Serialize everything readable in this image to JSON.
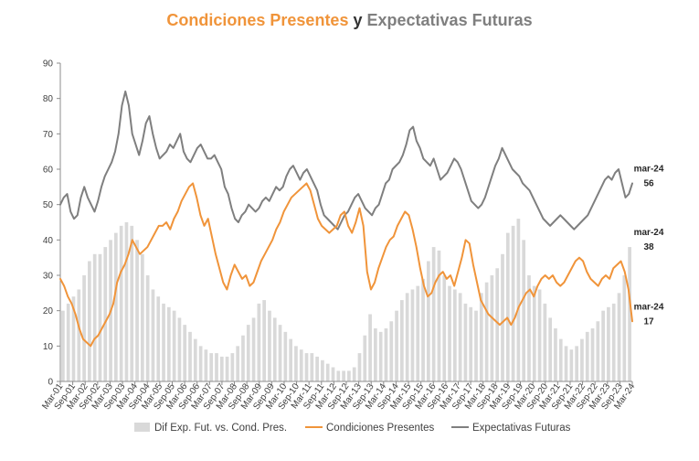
{
  "title": {
    "part1": "Condiciones Presentes",
    "part2": "y",
    "part3": "Expectativas Futuras"
  },
  "colors": {
    "bars": "#D9D9D9",
    "presentes": "#F0943A",
    "futuras": "#7F7F7F"
  },
  "chart_data": {
    "type": "line",
    "x_tick_labels": [
      "Mar-01",
      "Sep-01",
      "Mar-02",
      "Sep-02",
      "Mar-03",
      "Sep-03",
      "Mar-04",
      "Sep-04",
      "Mar-05",
      "Sep-05",
      "Mar-06",
      "Sep-06",
      "Mar-07",
      "Sep-07",
      "Mar-08",
      "Sep-08",
      "Mar-09",
      "Sep-09",
      "Mar-10",
      "Sep-10",
      "Mar-11",
      "Sep-11",
      "Mar-12",
      "Sep-12",
      "Mar-13",
      "Sep-13",
      "Mar-14",
      "Sep-14",
      "Mar-15",
      "Sep-15",
      "Mar-16",
      "Sep-16",
      "Mar-17",
      "Sep-17",
      "Mar-18",
      "Sep-18",
      "Mar-19",
      "Sep-19",
      "Mar-20",
      "Sep-20",
      "Mar-21",
      "Sep-21",
      "Mar-22",
      "Sep-22",
      "Mar-23",
      "Sep-23",
      "Mar-24"
    ],
    "ylim": [
      0,
      90
    ],
    "yticks": [
      0,
      10,
      20,
      30,
      40,
      50,
      60,
      70,
      80,
      90
    ],
    "grid": false,
    "legend_position": "bottom",
    "series": [
      {
        "name": "Dif Exp. Fut. vs. Cond. Pres.",
        "kind": "bar",
        "values": [
          20,
          22,
          24,
          26,
          30,
          34,
          36,
          36,
          38,
          40,
          42,
          44,
          45,
          44,
          40,
          36,
          30,
          26,
          24,
          22,
          21,
          20,
          18,
          16,
          14,
          12,
          10,
          9,
          8,
          8,
          7,
          7,
          8,
          10,
          13,
          16,
          18,
          22,
          23,
          20,
          18,
          16,
          14,
          12,
          10,
          9,
          8,
          8,
          7,
          6,
          5,
          4,
          3,
          3,
          3,
          4,
          8,
          13,
          19,
          15,
          14,
          15,
          17,
          20,
          23,
          25,
          26,
          27,
          29,
          34,
          38,
          37,
          30,
          27,
          26,
          25,
          22,
          21,
          20,
          25,
          28,
          30,
          32,
          36,
          42,
          44,
          46,
          40,
          30,
          27,
          26,
          22,
          18,
          15,
          12,
          10,
          9,
          10,
          12,
          14,
          15,
          17,
          20,
          21,
          22,
          25,
          30,
          38
        ]
      },
      {
        "name": "Condiciones Presentes",
        "kind": "line",
        "values": [
          29,
          27,
          24,
          22,
          19,
          15,
          12,
          11,
          10,
          12,
          13,
          15,
          17,
          19,
          22,
          28,
          31,
          33,
          36,
          40,
          38,
          36,
          37,
          38,
          40,
          42,
          44,
          44,
          45,
          43,
          46,
          48,
          51,
          53,
          55,
          56,
          52,
          47,
          44,
          46,
          41,
          36,
          32,
          28,
          26,
          30,
          33,
          31,
          29,
          30,
          27,
          28,
          31,
          34,
          36,
          38,
          40,
          43,
          45,
          48,
          50,
          52,
          53,
          54,
          55,
          56,
          54,
          50,
          46,
          44,
          43,
          42,
          43,
          44,
          47,
          48,
          44,
          42,
          45,
          49,
          44,
          31,
          26,
          28,
          32,
          35,
          38,
          40,
          41,
          44,
          46,
          48,
          47,
          43,
          38,
          32,
          27,
          24,
          25,
          28,
          30,
          31,
          29,
          30,
          27,
          31,
          35,
          40,
          39,
          33,
          28,
          23,
          21,
          19,
          18,
          17,
          16,
          17,
          18,
          16,
          18,
          21,
          23,
          25,
          26,
          24,
          27,
          29,
          30,
          29,
          30,
          28,
          27,
          28,
          30,
          32,
          34,
          35,
          34,
          31,
          29,
          28,
          27,
          29,
          30,
          29,
          32,
          33,
          34,
          31,
          26,
          17
        ]
      },
      {
        "name": "Expectativas Futuras",
        "kind": "line",
        "values": [
          50,
          52,
          53,
          48,
          46,
          47,
          52,
          55,
          52,
          50,
          48,
          51,
          55,
          58,
          60,
          62,
          65,
          70,
          78,
          82,
          78,
          70,
          67,
          64,
          68,
          73,
          75,
          70,
          66,
          63,
          64,
          65,
          67,
          66,
          68,
          70,
          65,
          63,
          62,
          64,
          66,
          67,
          65,
          63,
          63,
          64,
          62,
          60,
          55,
          53,
          49,
          46,
          45,
          47,
          48,
          50,
          49,
          48,
          49,
          51,
          52,
          51,
          53,
          55,
          54,
          55,
          58,
          60,
          61,
          59,
          57,
          59,
          60,
          58,
          56,
          54,
          50,
          47,
          46,
          45,
          44,
          43,
          45,
          47,
          48,
          50,
          52,
          53,
          51,
          49,
          48,
          47,
          49,
          50,
          53,
          56,
          57,
          60,
          61,
          62,
          64,
          67,
          71,
          72,
          68,
          66,
          63,
          62,
          61,
          63,
          60,
          57,
          58,
          59,
          61,
          63,
          62,
          60,
          57,
          54,
          51,
          50,
          49,
          50,
          52,
          55,
          58,
          61,
          63,
          66,
          64,
          62,
          60,
          59,
          58,
          56,
          55,
          54,
          52,
          50,
          48,
          46,
          45,
          44,
          45,
          46,
          47,
          46,
          45,
          44,
          43,
          44,
          45,
          46,
          47,
          49,
          51,
          53,
          55,
          57,
          58,
          57,
          59,
          60,
          56,
          52,
          53,
          56
        ]
      }
    ],
    "annotations": [
      {
        "date": "mar-24",
        "value": "56",
        "series": "Expectativas Futuras"
      },
      {
        "date": "mar-24",
        "value": "38",
        "series": "Dif Exp. Fut. vs. Cond. Pres."
      },
      {
        "date": "mar-24",
        "value": "17",
        "series": "Condiciones Presentes"
      }
    ]
  }
}
